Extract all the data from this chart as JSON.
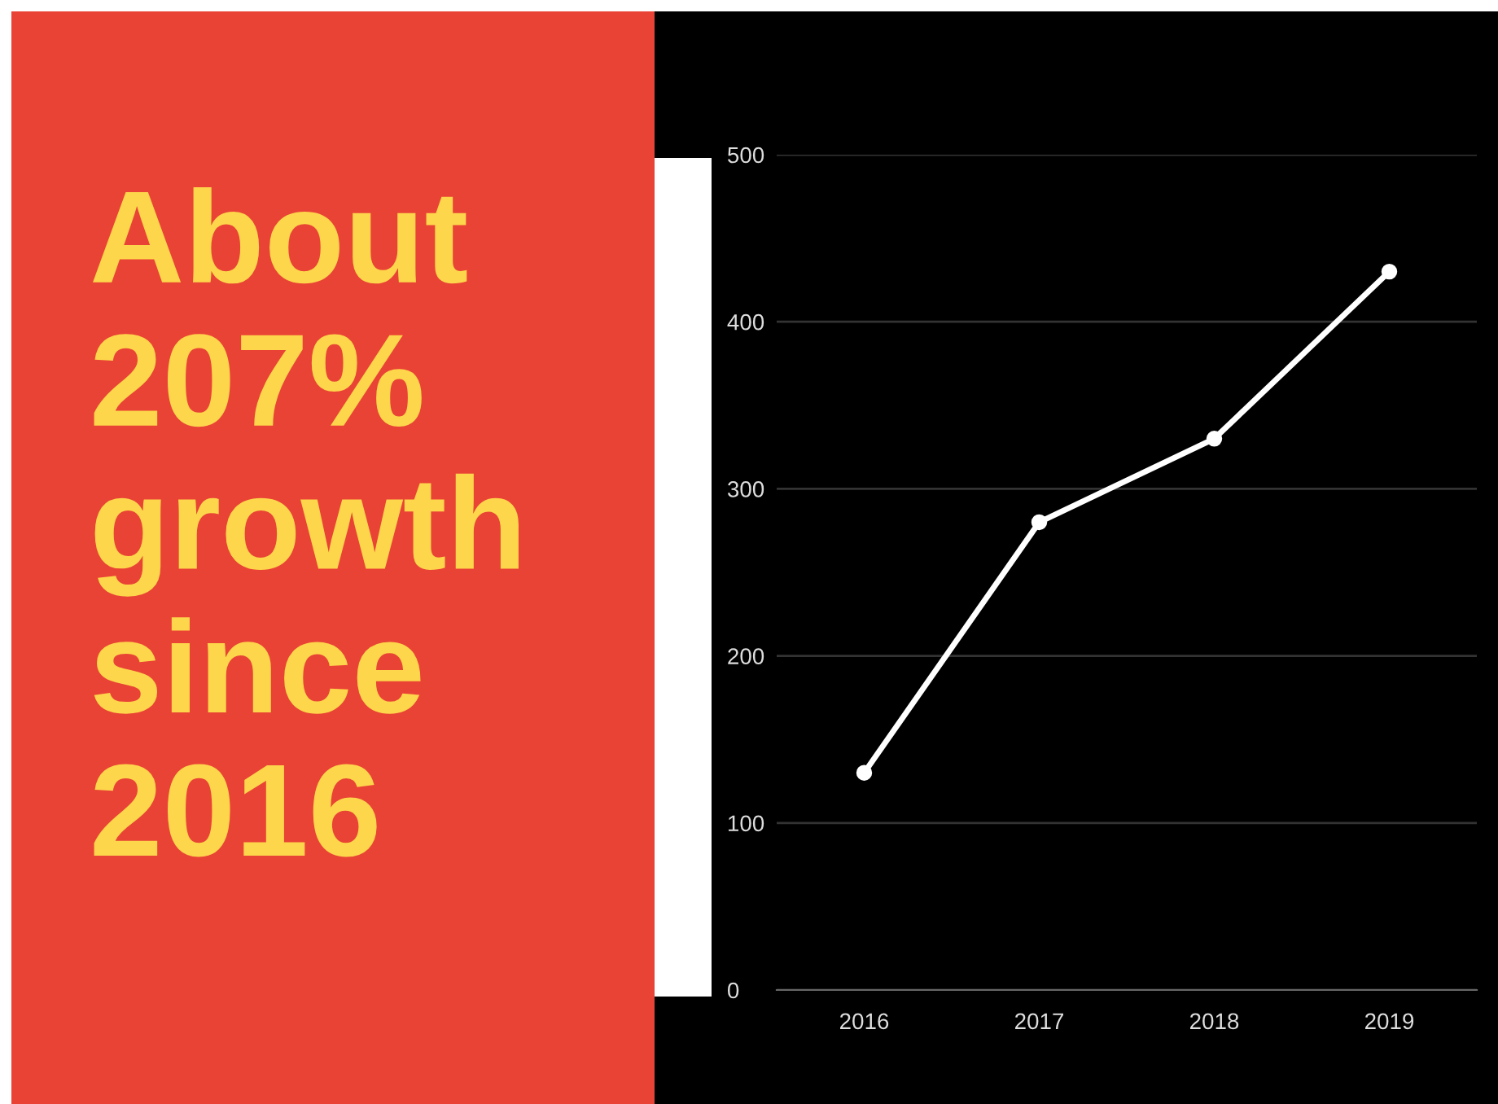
{
  "chart_data": {
    "type": "line",
    "title": "About\n207%\ngrowth\nsince\n2016",
    "categories": [
      "2016",
      "2017",
      "2018",
      "2019"
    ],
    "values": [
      130,
      280,
      330,
      430
    ],
    "color": "#ffffff",
    "ylim": [
      0,
      500
    ],
    "yticks": [
      0,
      100,
      200,
      300,
      400,
      500
    ],
    "grid": "y",
    "marker": "circle",
    "line_style": "solid"
  }
}
